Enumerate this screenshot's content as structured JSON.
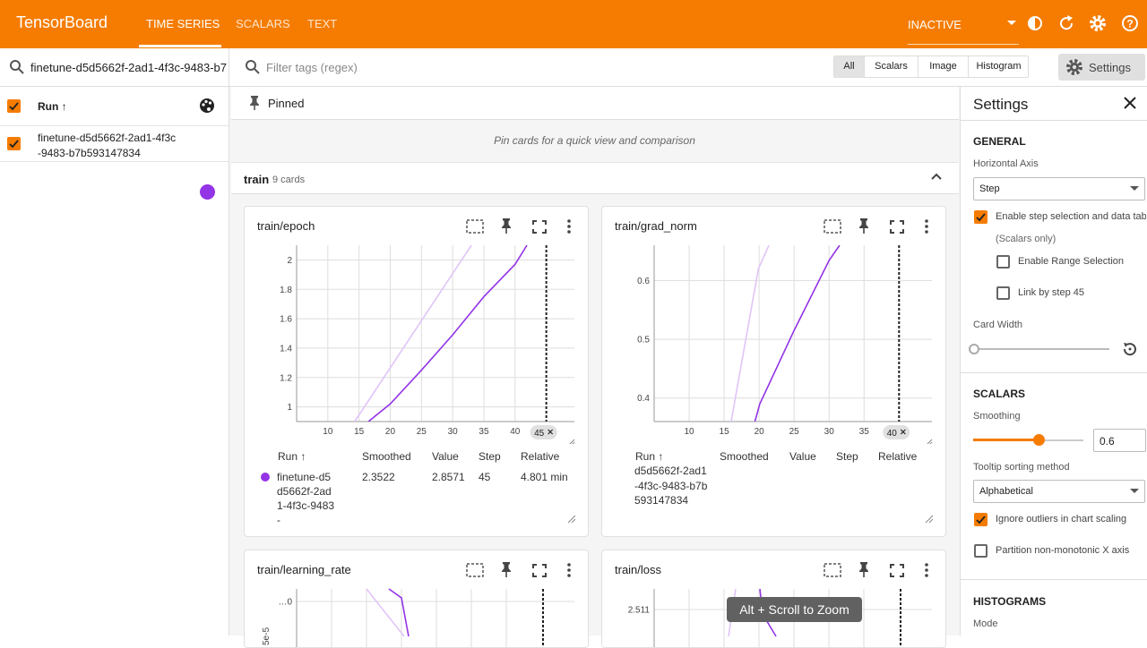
{
  "header": {
    "brand": "TensorBoard",
    "tabs": [
      "TIME SERIES",
      "SCALARS",
      "TEXT"
    ],
    "status": "INACTIVE"
  },
  "runs": {
    "filter": "finetune-d5d5662f-2ad1-4f3c-9483-b7",
    "column": "Run ↑",
    "items": [
      "finetune-d5d5662f-2ad1-4f3c-9483-b7b593147834"
    ]
  },
  "toolbar": {
    "filter_placeholder": "Filter tags (regex)",
    "types": [
      "All",
      "Scalars",
      "Image",
      "Histogram"
    ],
    "settings": "Settings"
  },
  "pinned": {
    "title": "Pinned",
    "empty": "Pin cards for a quick view and comparison"
  },
  "group": {
    "name": "train",
    "count": "9 cards"
  },
  "cards": [
    {
      "title": "train/epoch",
      "xlim": [
        5,
        49.5
      ],
      "xticks": [
        10,
        15,
        20,
        25,
        30,
        35,
        40
      ],
      "selected_step": 45,
      "ylim": [
        0.9,
        2.1
      ],
      "yticks": [
        1,
        1.2,
        1.4,
        1.6,
        1.8,
        2
      ],
      "smoothed": {
        "x": [
          16.5,
          20,
          25,
          30,
          35,
          40,
          41.9
        ],
        "y": [
          0.9,
          1.02,
          1.25,
          1.49,
          1.75,
          1.97,
          2.1
        ]
      },
      "raw": {
        "x": [
          14.3,
          33
        ],
        "y": [
          0.9,
          2.1
        ]
      },
      "table": {
        "columns": [
          "Run ↑",
          "Smoothed",
          "Value",
          "Step",
          "Relative"
        ],
        "row": [
          "finetune-d5d5662f-2ad1-4f3c-9483-",
          "2.3522",
          "2.8571",
          "45",
          "4.801 min"
        ]
      }
    },
    {
      "title": "train/grad_norm",
      "xlim": [
        5,
        44.7
      ],
      "xticks": [
        10,
        15,
        20,
        25,
        30,
        35
      ],
      "selected_step": 40,
      "ylim": [
        0.36,
        0.66
      ],
      "yticks": [
        0.4,
        0.5,
        0.6
      ],
      "smoothed": {
        "x": [
          19.4,
          20.1,
          25,
          30,
          31.5
        ],
        "y": [
          0.36,
          0.39,
          0.515,
          0.634,
          0.66
        ]
      },
      "raw": {
        "x": [
          16,
          19.9,
          21.4
        ],
        "y": [
          0.36,
          0.62,
          0.66
        ]
      },
      "table": {
        "columns": [
          "Run ↑",
          "Smoothed",
          "Value",
          "Step",
          "Relative"
        ],
        "row": [
          "d5d5662f-2ad1-4f3c-9483-b7b593147834"
        ]
      }
    },
    {
      "title": "train/learning_rate",
      "ytick": "…0",
      "ylabel": "5e-5"
    },
    {
      "title": "train/loss",
      "ytick": "2.511"
    }
  ],
  "tooltip": "Alt + Scroll to Zoom",
  "settings": {
    "title": "Settings",
    "general": "GENERAL",
    "horizontal_axis": "Horizontal Axis",
    "axis_value": "Step",
    "step_selection": "Enable step selection and data tab",
    "scalars_only": "(Scalars only)",
    "range_selection": "Enable Range Selection",
    "link_by_step": "Link by step 45",
    "card_width": "Card Width",
    "scalars": "SCALARS",
    "smoothing": "Smoothing",
    "smoothing_value": 0.6,
    "tooltip_sorting": "Tooltip sorting method",
    "sorting_value": "Alphabetical",
    "ignore_outliers": "Ignore outliers in chart scaling",
    "partition": "Partition non-monotonic X axis",
    "histograms": "HISTOGRAMS",
    "mode": "Mode"
  }
}
